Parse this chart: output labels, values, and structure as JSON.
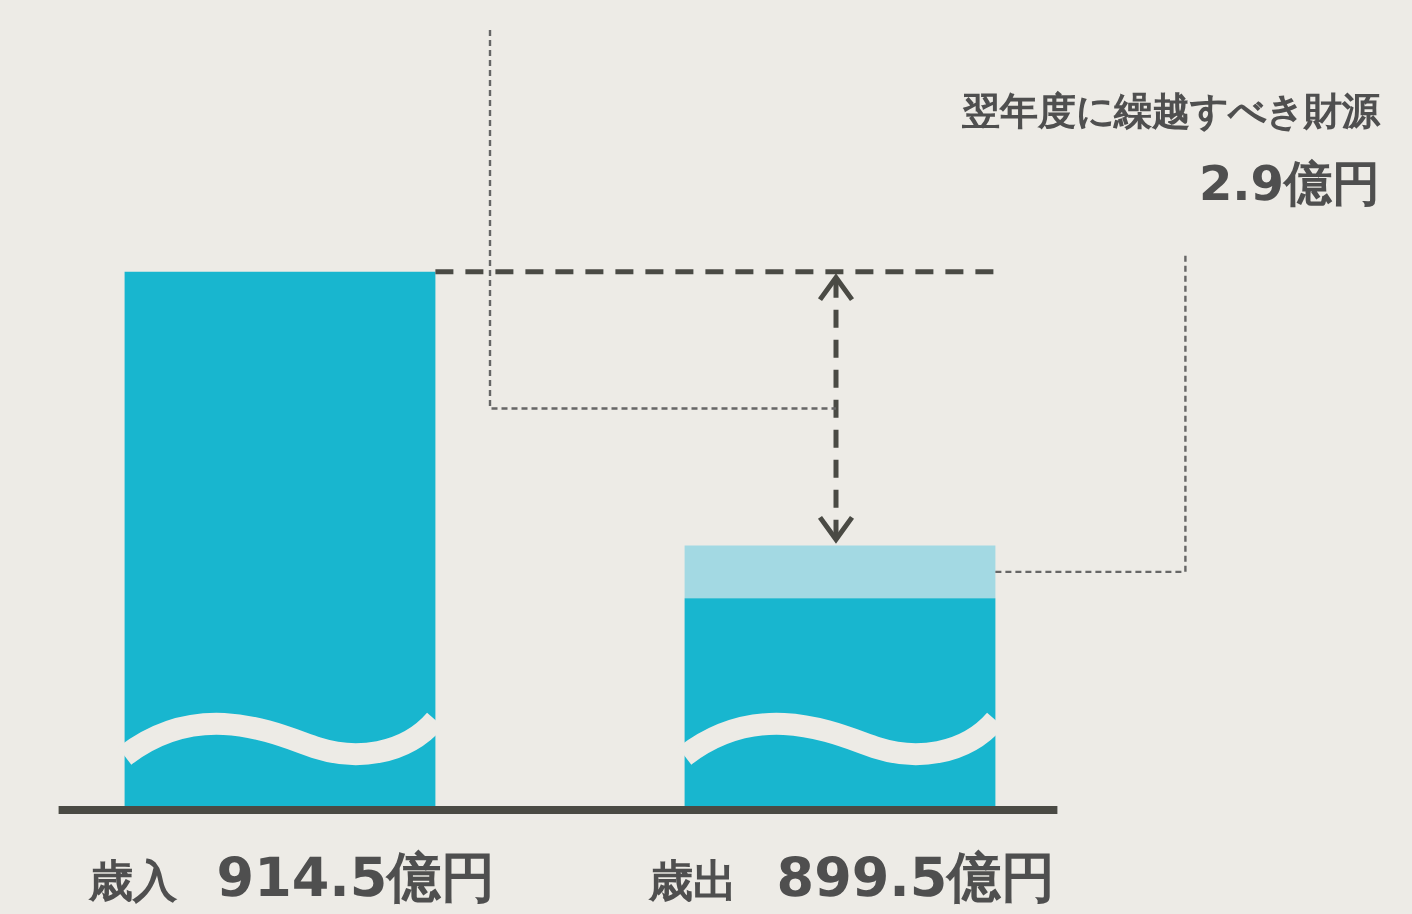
{
  "chart_data": {
    "type": "bar",
    "stacked": true,
    "categories": [
      "歳入",
      "歳出"
    ],
    "totals": [
      "914.5億円",
      "899.5億円"
    ],
    "series": [
      {
        "color": "#18b6cf",
        "values": [
          914.5,
          896.6
        ]
      },
      {
        "color": "#a3d9e3",
        "values": [
          null,
          2.9
        ],
        "value_labels": [
          null,
          "2.9億円"
        ]
      }
    ],
    "annotations": [
      "翌年度に繰越すべき財源"
    ],
    "legend": false
  }
}
